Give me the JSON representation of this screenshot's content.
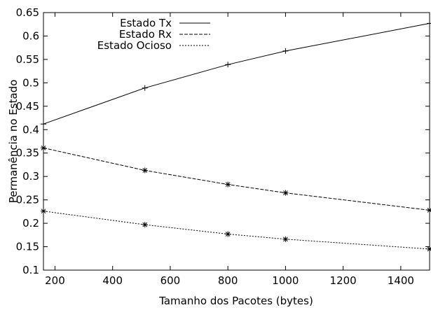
{
  "chart_data": {
    "type": "line",
    "title": "",
    "xlabel": "Tamanho dos Pacotes (bytes)",
    "ylabel": "Permanência no Estado",
    "xlim": [
      160,
      1500
    ],
    "ylim": [
      0.1,
      0.65
    ],
    "xticks": [
      200,
      400,
      600,
      800,
      1000,
      1200,
      1400
    ],
    "yticks": [
      0.1,
      0.15,
      0.2,
      0.25,
      0.3,
      0.35,
      0.4,
      0.45,
      0.5,
      0.55,
      0.6,
      0.65
    ],
    "xtick_labels": [
      "200",
      "400",
      "600",
      "800",
      "1000",
      "1200",
      "1400"
    ],
    "ytick_labels": [
      "0.1",
      "0.15",
      "0.2",
      "0.25",
      "0.3",
      "0.35",
      "0.4",
      "0.45",
      "0.5",
      "0.55",
      "0.6",
      "0.65"
    ],
    "grid": false,
    "legend_position": "top-center",
    "x": [
      160,
      512,
      800,
      1000,
      1500
    ],
    "series": [
      {
        "name": "Estado Tx",
        "dash": "solid",
        "marker": "plus",
        "values": [
          0.412,
          0.489,
          0.539,
          0.568,
          0.627
        ]
      },
      {
        "name": "Estado Rx",
        "dash": "dashed",
        "marker": "star",
        "values": [
          0.361,
          0.313,
          0.283,
          0.265,
          0.228
        ]
      },
      {
        "name": "Estado Ocioso",
        "dash": "dotted",
        "marker": "star",
        "values": [
          0.226,
          0.197,
          0.177,
          0.166,
          0.145
        ]
      }
    ],
    "colors": {
      "line": "#000000",
      "axis": "#000000",
      "background": "#ffffff"
    }
  }
}
